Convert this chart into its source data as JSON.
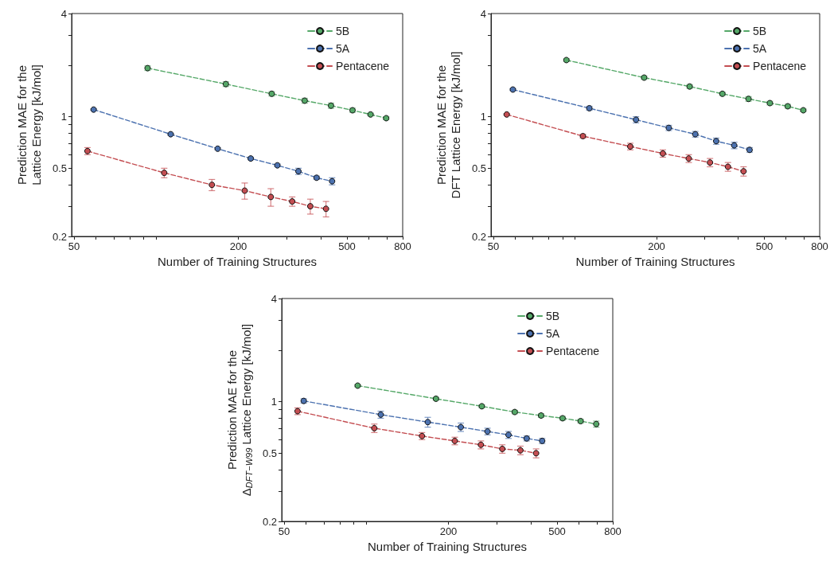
{
  "chart_data": [
    {
      "type": "line",
      "xlabel": "Number of Training Structures",
      "ylabel": "Prediction MAE for the\nLattice Energy [kJ/mol]",
      "log": "xy",
      "xlim": [
        49,
        800
      ],
      "ylim": [
        0.2,
        4
      ],
      "xticks": [
        50,
        {
          "value": 60,
          "label": null
        },
        {
          "value": 70,
          "label": null
        },
        {
          "value": 80,
          "label": null
        },
        {
          "value": 90,
          "label": null
        },
        {
          "value": 100,
          "label": null
        },
        200,
        {
          "value": 300,
          "label": null
        },
        {
          "value": 400,
          "label": null
        },
        500,
        {
          "value": 600,
          "label": null
        },
        {
          "value": 700,
          "label": null
        },
        800
      ],
      "yticks": [
        0.2,
        {
          "value": 0.3,
          "label": null
        },
        {
          "value": 0.4,
          "label": null
        },
        0.5,
        {
          "value": 0.6,
          "label": null
        },
        {
          "value": 0.7,
          "label": null
        },
        {
          "value": 0.8,
          "label": null
        },
        {
          "value": 0.9,
          "label": null
        },
        1,
        {
          "value": 2,
          "label": null
        },
        {
          "value": 3,
          "label": null
        },
        4
      ],
      "grid": false,
      "legend": "top right",
      "marker": "circle",
      "line_style": "dashed",
      "series": [
        {
          "name": "5B",
          "color": "#55a868",
          "x": [
            93,
            180,
            265,
            350,
            437,
            524,
            610,
            696
          ],
          "values": [
            1.92,
            1.55,
            1.36,
            1.24,
            1.16,
            1.09,
            1.03,
            0.98
          ],
          "errors": [
            0.06,
            0.05,
            0.04,
            0.04,
            0.04,
            0.03,
            0.02,
            0.02
          ]
        },
        {
          "name": "5A",
          "color": "#4c72b0",
          "x": [
            59,
            113,
            168,
            222,
            278,
            332,
            387,
            441
          ],
          "values": [
            1.1,
            0.79,
            0.65,
            0.57,
            0.52,
            0.48,
            0.44,
            0.42
          ],
          "errors": [
            0.01,
            0.01,
            0.01,
            0.01,
            0.01,
            0.02,
            0.01,
            0.02
          ]
        },
        {
          "name": "Pentacene",
          "color": "#c44e52",
          "x": [
            56,
            107,
            160,
            211,
            263,
            315,
            367,
            419
          ],
          "values": [
            0.63,
            0.47,
            0.4,
            0.37,
            0.34,
            0.32,
            0.3,
            0.29
          ],
          "errors": [
            0.03,
            0.03,
            0.03,
            0.04,
            0.04,
            0.02,
            0.03,
            0.03
          ]
        }
      ]
    },
    {
      "type": "line",
      "xlabel": "Number of Training Structures",
      "ylabel": "Prediction MAE for the\nDFT Lattice Energy [kJ/mol]",
      "log": "xy",
      "xlim": [
        49,
        800
      ],
      "ylim": [
        0.2,
        4
      ],
      "xticks": [
        50,
        {
          "value": 60,
          "label": null
        },
        {
          "value": 70,
          "label": null
        },
        {
          "value": 80,
          "label": null
        },
        {
          "value": 90,
          "label": null
        },
        {
          "value": 100,
          "label": null
        },
        200,
        {
          "value": 300,
          "label": null
        },
        {
          "value": 400,
          "label": null
        },
        500,
        {
          "value": 600,
          "label": null
        },
        {
          "value": 700,
          "label": null
        },
        800
      ],
      "yticks": [
        0.2,
        {
          "value": 0.3,
          "label": null
        },
        {
          "value": 0.4,
          "label": null
        },
        0.5,
        {
          "value": 0.6,
          "label": null
        },
        {
          "value": 0.7,
          "label": null
        },
        {
          "value": 0.8,
          "label": null
        },
        {
          "value": 0.9,
          "label": null
        },
        1,
        {
          "value": 2,
          "label": null
        },
        {
          "value": 3,
          "label": null
        },
        4
      ],
      "grid": false,
      "legend": "top right",
      "marker": "circle",
      "line_style": "dashed",
      "series": [
        {
          "name": "5B",
          "color": "#55a868",
          "x": [
            93,
            180,
            265,
            350,
            437,
            524,
            610,
            696
          ],
          "values": [
            2.14,
            1.69,
            1.5,
            1.36,
            1.27,
            1.2,
            1.15,
            1.09
          ],
          "errors": [
            0.04,
            0.04,
            0.04,
            0.03,
            0.04,
            0.03,
            0.03,
            0.02
          ]
        },
        {
          "name": "5A",
          "color": "#4c72b0",
          "x": [
            59,
            113,
            168,
            222,
            278,
            332,
            387,
            441
          ],
          "values": [
            1.44,
            1.12,
            0.96,
            0.86,
            0.79,
            0.72,
            0.68,
            0.64
          ],
          "errors": [
            0.02,
            0.03,
            0.04,
            0.03,
            0.03,
            0.03,
            0.03,
            0.02
          ]
        },
        {
          "name": "Pentacene",
          "color": "#c44e52",
          "x": [
            56,
            107,
            160,
            211,
            263,
            315,
            367,
            419
          ],
          "values": [
            1.03,
            0.77,
            0.67,
            0.61,
            0.57,
            0.54,
            0.51,
            0.48
          ],
          "errors": [
            0.01,
            0.02,
            0.03,
            0.03,
            0.03,
            0.03,
            0.03,
            0.03
          ]
        }
      ]
    },
    {
      "type": "line",
      "xlabel": "Number of Training Structures",
      "ylabel": "Prediction MAE for the\nΔ$_{DFT−W99}$ Lattice Energy [kJ/mol]",
      "log": "xy",
      "xlim": [
        49,
        800
      ],
      "ylim": [
        0.2,
        4
      ],
      "xticks": [
        50,
        {
          "value": 60,
          "label": null
        },
        {
          "value": 70,
          "label": null
        },
        {
          "value": 80,
          "label": null
        },
        {
          "value": 90,
          "label": null
        },
        {
          "value": 100,
          "label": null
        },
        200,
        {
          "value": 300,
          "label": null
        },
        {
          "value": 400,
          "label": null
        },
        500,
        {
          "value": 600,
          "label": null
        },
        {
          "value": 700,
          "label": null
        },
        800
      ],
      "yticks": [
        0.2,
        {
          "value": 0.3,
          "label": null
        },
        {
          "value": 0.4,
          "label": null
        },
        0.5,
        {
          "value": 0.6,
          "label": null
        },
        {
          "value": 0.7,
          "label": null
        },
        {
          "value": 0.8,
          "label": null
        },
        {
          "value": 0.9,
          "label": null
        },
        1,
        {
          "value": 2,
          "label": null
        },
        {
          "value": 3,
          "label": null
        },
        4
      ],
      "grid": false,
      "legend": "top right",
      "marker": "circle",
      "line_style": "dashed",
      "series": [
        {
          "name": "5B",
          "color": "#55a868",
          "x": [
            93,
            180,
            265,
            350,
            437,
            524,
            610,
            696
          ],
          "values": [
            1.24,
            1.04,
            0.94,
            0.87,
            0.83,
            0.8,
            0.77,
            0.74
          ],
          "errors": [
            0.02,
            0.02,
            0.02,
            0.02,
            0.02,
            0.02,
            0.02,
            0.03
          ]
        },
        {
          "name": "5A",
          "color": "#4c72b0",
          "x": [
            59,
            113,
            168,
            222,
            278,
            332,
            387,
            441
          ],
          "values": [
            1.01,
            0.84,
            0.76,
            0.71,
            0.67,
            0.64,
            0.61,
            0.59
          ],
          "errors": [
            0.03,
            0.04,
            0.05,
            0.04,
            0.03,
            0.03,
            0.02,
            0.02
          ]
        },
        {
          "name": "Pentacene",
          "color": "#c44e52",
          "x": [
            56,
            107,
            160,
            211,
            263,
            315,
            367,
            419
          ],
          "values": [
            0.88,
            0.7,
            0.63,
            0.59,
            0.56,
            0.53,
            0.52,
            0.5
          ],
          "errors": [
            0.04,
            0.04,
            0.03,
            0.03,
            0.03,
            0.03,
            0.03,
            0.03
          ]
        }
      ]
    }
  ]
}
